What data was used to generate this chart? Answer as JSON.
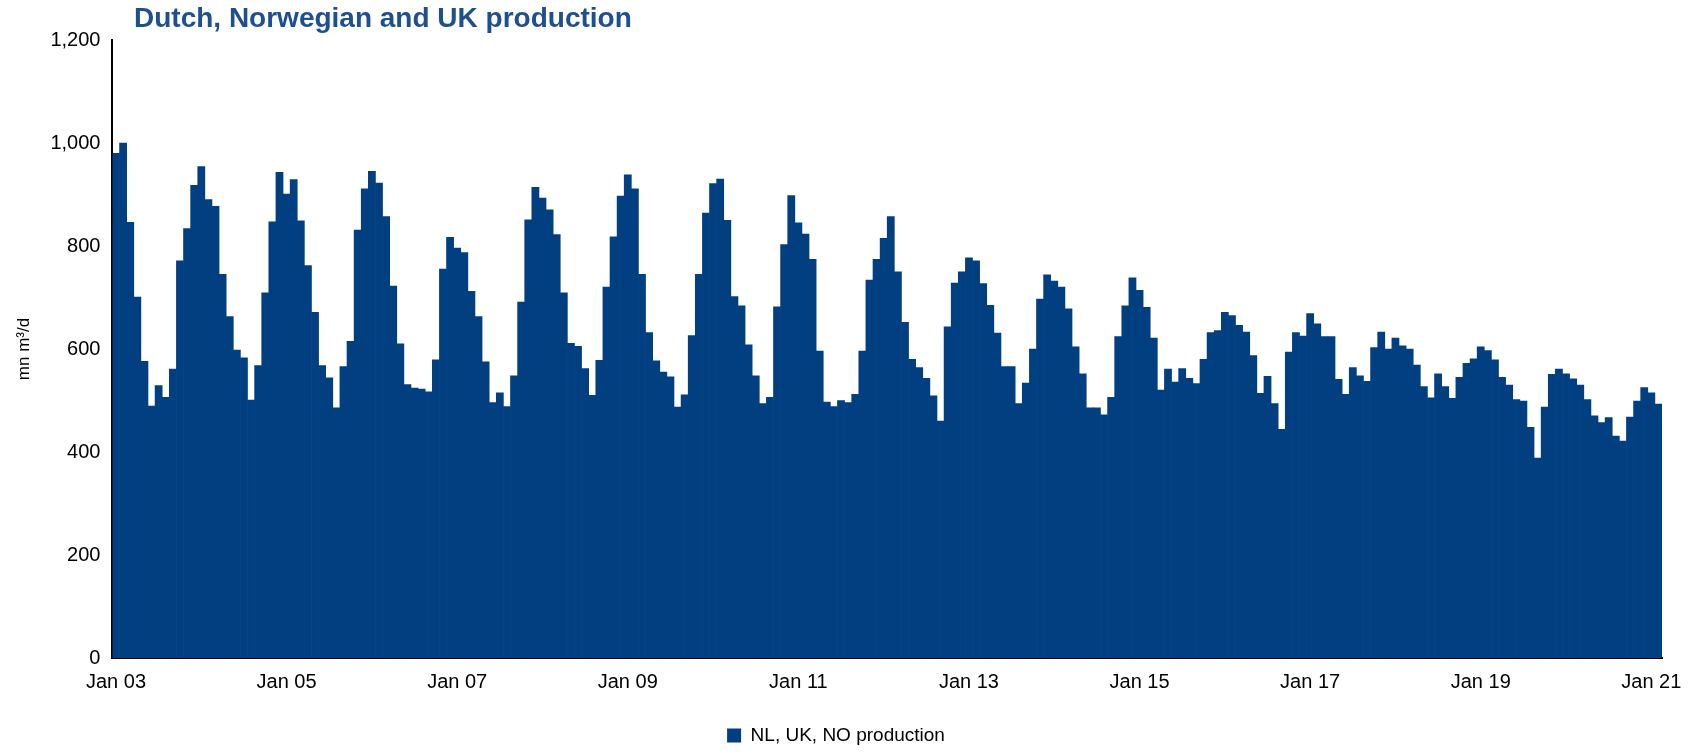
{
  "chart_data": {
    "type": "bar",
    "title": "Dutch, Norwegian and UK production",
    "ylabel": "mn m³/d",
    "categories": [
      "Jan 03",
      null,
      null,
      null,
      null,
      null,
      null,
      null,
      null,
      null,
      null,
      null,
      null,
      null,
      null,
      null,
      null,
      null,
      null,
      null,
      null,
      null,
      null,
      null,
      "Jan 05",
      null,
      null,
      null,
      null,
      null,
      null,
      null,
      null,
      null,
      null,
      null,
      null,
      null,
      null,
      null,
      null,
      null,
      null,
      null,
      null,
      null,
      null,
      null,
      "Jan 07",
      null,
      null,
      null,
      null,
      null,
      null,
      null,
      null,
      null,
      null,
      null,
      null,
      null,
      null,
      null,
      null,
      null,
      null,
      null,
      null,
      null,
      null,
      null,
      "Jan 09",
      null,
      null,
      null,
      null,
      null,
      null,
      null,
      null,
      null,
      null,
      null,
      null,
      null,
      null,
      null,
      null,
      null,
      null,
      null,
      null,
      null,
      null,
      null,
      "Jan 11",
      null,
      null,
      null,
      null,
      null,
      null,
      null,
      null,
      null,
      null,
      null,
      null,
      null,
      null,
      null,
      null,
      null,
      null,
      null,
      null,
      null,
      null,
      null,
      "Jan 13",
      null,
      null,
      null,
      null,
      null,
      null,
      null,
      null,
      null,
      null,
      null,
      null,
      null,
      null,
      null,
      null,
      null,
      null,
      null,
      null,
      null,
      null,
      null,
      "Jan 15",
      null,
      null,
      null,
      null,
      null,
      null,
      null,
      null,
      null,
      null,
      null,
      null,
      null,
      null,
      null,
      null,
      null,
      null,
      null,
      null,
      null,
      null,
      null,
      "Jan 17",
      null,
      null,
      null,
      null,
      null,
      null,
      null,
      null,
      null,
      null,
      null,
      null,
      null,
      null,
      null,
      null,
      null,
      null,
      null,
      null,
      null,
      null,
      null,
      "Jan 19",
      null,
      null,
      null,
      null,
      null,
      null,
      null,
      null,
      null,
      null,
      null,
      null,
      null,
      null,
      null,
      null,
      null,
      null,
      null,
      null,
      null,
      null,
      null,
      "Jan 21",
      null
    ],
    "series": [
      {
        "name": "NL, UK, NO production",
        "color": "#023f80",
        "values": [
          980,
          1000,
          846,
          701,
          576,
          489,
          529,
          506,
          561,
          771,
          834,
          918,
          954,
          890,
          877,
          745,
          663,
          598,
          583,
          501,
          568,
          709,
          847,
          943,
          901,
          929,
          849,
          762,
          671,
          568,
          544,
          486,
          566,
          615,
          831,
          911,
          945,
          922,
          857,
          722,
          610,
          531,
          524,
          522,
          517,
          579,
          755,
          817,
          796,
          787,
          712,
          663,
          575,
          496,
          515,
          488,
          548,
          691,
          851,
          914,
          893,
          870,
          822,
          709,
          611,
          605,
          562,
          510,
          578,
          720,
          818,
          897,
          938,
          911,
          745,
          632,
          577,
          555,
          546,
          487,
          511,
          626,
          745,
          864,
          921,
          930,
          850,
          702,
          684,
          608,
          548,
          494,
          506,
          682,
          803,
          898,
          845,
          823,
          774,
          596,
          497,
          488,
          500,
          496,
          512,
          596,
          734,
          774,
          815,
          857,
          750,
          652,
          580,
          564,
          543,
          509,
          460,
          643,
          728,
          750,
          777,
          771,
          727,
          685,
          631,
          566,
          566,
          494,
          534,
          600,
          697,
          744,
          732,
          720,
          678,
          604,
          552,
          486,
          486,
          472,
          506,
          624,
          684,
          738,
          714,
          681,
          621,
          520,
          561,
          536,
          562,
          543,
          533,
          580,
          632,
          636,
          671,
          665,
          646,
          633,
          587,
          514,
          547,
          494,
          444,
          594,
          632,
          625,
          669,
          649,
          624,
          624,
          541,
          512,
          564,
          548,
          537,
          603,
          633,
          600,
          621,
          606,
          600,
          569,
          527,
          505,
          552,
          527,
          504,
          545,
          572,
          581,
          604,
          597,
          579,
          545,
          530,
          502,
          499,
          448,
          388,
          487,
          551,
          561,
          552,
          542,
          530,
          502,
          470,
          457,
          467,
          431,
          421,
          468,
          499,
          525,
          515,
          493
        ]
      }
    ],
    "ylim": [
      0,
      1200
    ],
    "yticks": [
      0,
      200,
      400,
      600,
      800,
      {
        "value": 1000,
        "label": "1,000"
      },
      {
        "value": 1200,
        "label": "1,200"
      }
    ],
    "grid": false,
    "legend": "bottom"
  }
}
